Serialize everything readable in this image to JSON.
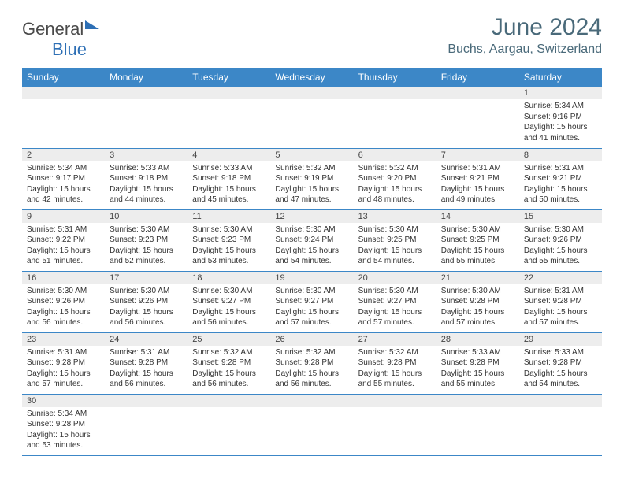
{
  "logo": {
    "textGeneral": "General",
    "textBlue": "Blue"
  },
  "header": {
    "monthTitle": "June 2024",
    "location": "Buchs, Aargau, Switzerland"
  },
  "colors": {
    "headerBg": "#3c87c7",
    "headerText": "#ffffff",
    "dayNumBg": "#ededed",
    "titleColor": "#4a6a7a",
    "rowBorder": "#3c87c7"
  },
  "dayNames": [
    "Sunday",
    "Monday",
    "Tuesday",
    "Wednesday",
    "Thursday",
    "Friday",
    "Saturday"
  ],
  "weeks": [
    [
      null,
      null,
      null,
      null,
      null,
      null,
      {
        "n": "1",
        "sr": "5:34 AM",
        "ss": "9:16 PM",
        "dl": "15 hours and 41 minutes."
      }
    ],
    [
      {
        "n": "2",
        "sr": "5:34 AM",
        "ss": "9:17 PM",
        "dl": "15 hours and 42 minutes."
      },
      {
        "n": "3",
        "sr": "5:33 AM",
        "ss": "9:18 PM",
        "dl": "15 hours and 44 minutes."
      },
      {
        "n": "4",
        "sr": "5:33 AM",
        "ss": "9:18 PM",
        "dl": "15 hours and 45 minutes."
      },
      {
        "n": "5",
        "sr": "5:32 AM",
        "ss": "9:19 PM",
        "dl": "15 hours and 47 minutes."
      },
      {
        "n": "6",
        "sr": "5:32 AM",
        "ss": "9:20 PM",
        "dl": "15 hours and 48 minutes."
      },
      {
        "n": "7",
        "sr": "5:31 AM",
        "ss": "9:21 PM",
        "dl": "15 hours and 49 minutes."
      },
      {
        "n": "8",
        "sr": "5:31 AM",
        "ss": "9:21 PM",
        "dl": "15 hours and 50 minutes."
      }
    ],
    [
      {
        "n": "9",
        "sr": "5:31 AM",
        "ss": "9:22 PM",
        "dl": "15 hours and 51 minutes."
      },
      {
        "n": "10",
        "sr": "5:30 AM",
        "ss": "9:23 PM",
        "dl": "15 hours and 52 minutes."
      },
      {
        "n": "11",
        "sr": "5:30 AM",
        "ss": "9:23 PM",
        "dl": "15 hours and 53 minutes."
      },
      {
        "n": "12",
        "sr": "5:30 AM",
        "ss": "9:24 PM",
        "dl": "15 hours and 54 minutes."
      },
      {
        "n": "13",
        "sr": "5:30 AM",
        "ss": "9:25 PM",
        "dl": "15 hours and 54 minutes."
      },
      {
        "n": "14",
        "sr": "5:30 AM",
        "ss": "9:25 PM",
        "dl": "15 hours and 55 minutes."
      },
      {
        "n": "15",
        "sr": "5:30 AM",
        "ss": "9:26 PM",
        "dl": "15 hours and 55 minutes."
      }
    ],
    [
      {
        "n": "16",
        "sr": "5:30 AM",
        "ss": "9:26 PM",
        "dl": "15 hours and 56 minutes."
      },
      {
        "n": "17",
        "sr": "5:30 AM",
        "ss": "9:26 PM",
        "dl": "15 hours and 56 minutes."
      },
      {
        "n": "18",
        "sr": "5:30 AM",
        "ss": "9:27 PM",
        "dl": "15 hours and 56 minutes."
      },
      {
        "n": "19",
        "sr": "5:30 AM",
        "ss": "9:27 PM",
        "dl": "15 hours and 57 minutes."
      },
      {
        "n": "20",
        "sr": "5:30 AM",
        "ss": "9:27 PM",
        "dl": "15 hours and 57 minutes."
      },
      {
        "n": "21",
        "sr": "5:30 AM",
        "ss": "9:28 PM",
        "dl": "15 hours and 57 minutes."
      },
      {
        "n": "22",
        "sr": "5:31 AM",
        "ss": "9:28 PM",
        "dl": "15 hours and 57 minutes."
      }
    ],
    [
      {
        "n": "23",
        "sr": "5:31 AM",
        "ss": "9:28 PM",
        "dl": "15 hours and 57 minutes."
      },
      {
        "n": "24",
        "sr": "5:31 AM",
        "ss": "9:28 PM",
        "dl": "15 hours and 56 minutes."
      },
      {
        "n": "25",
        "sr": "5:32 AM",
        "ss": "9:28 PM",
        "dl": "15 hours and 56 minutes."
      },
      {
        "n": "26",
        "sr": "5:32 AM",
        "ss": "9:28 PM",
        "dl": "15 hours and 56 minutes."
      },
      {
        "n": "27",
        "sr": "5:32 AM",
        "ss": "9:28 PM",
        "dl": "15 hours and 55 minutes."
      },
      {
        "n": "28",
        "sr": "5:33 AM",
        "ss": "9:28 PM",
        "dl": "15 hours and 55 minutes."
      },
      {
        "n": "29",
        "sr": "5:33 AM",
        "ss": "9:28 PM",
        "dl": "15 hours and 54 minutes."
      }
    ],
    [
      {
        "n": "30",
        "sr": "5:34 AM",
        "ss": "9:28 PM",
        "dl": "15 hours and 53 minutes."
      },
      null,
      null,
      null,
      null,
      null,
      null
    ]
  ],
  "labels": {
    "sunrise": "Sunrise:",
    "sunset": "Sunset:",
    "daylight": "Daylight:"
  }
}
